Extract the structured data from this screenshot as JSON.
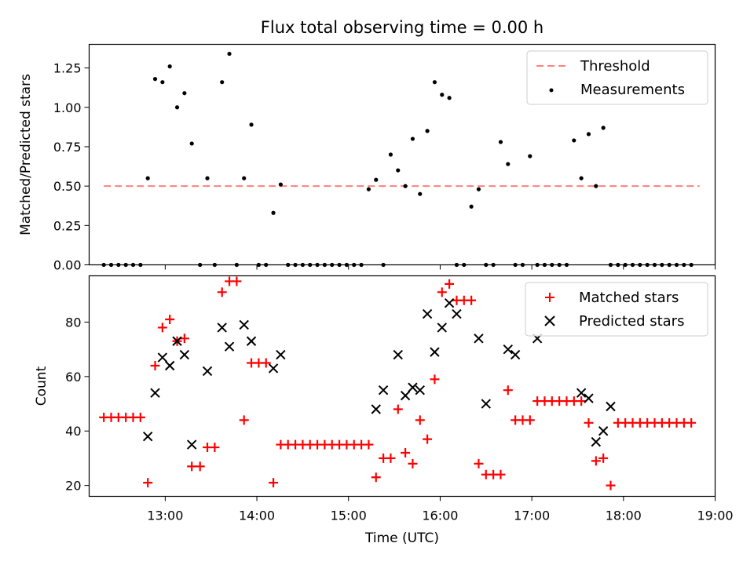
{
  "chart_data": [
    {
      "type": "scatter",
      "title": "Flux total observing time = 0.00 h",
      "xlabel": "",
      "ylabel": "Matched/Predicted stars",
      "xlim": [
        12.17,
        19.0
      ],
      "ylim": [
        0,
        1.4
      ],
      "yticks": [
        0,
        0.25,
        0.5,
        0.75,
        1.0,
        1.25
      ],
      "ytick_labels": [
        "0.00",
        "0.25",
        "0.50",
        "0.75",
        "1.00",
        "1.25"
      ],
      "xticks": [
        13,
        14,
        15,
        16,
        17,
        18,
        19
      ],
      "legend_position": "top-right",
      "grid": false,
      "threshold": {
        "name": "Threshold",
        "value": 0.5,
        "x_range": [
          12.33,
          18.83
        ],
        "color": "#ff8080"
      },
      "series": [
        {
          "name": "Measurements",
          "marker": "dot",
          "color": "#000000",
          "x": [
            12.33,
            12.41,
            12.49,
            12.57,
            12.65,
            12.73,
            12.81,
            12.89,
            12.97,
            13.05,
            13.13,
            13.21,
            13.29,
            13.38,
            13.46,
            13.54,
            13.62,
            13.7,
            13.78,
            13.86,
            13.94,
            14.02,
            14.1,
            14.18,
            14.26,
            14.34,
            14.42,
            14.5,
            14.58,
            14.66,
            14.74,
            14.82,
            14.9,
            14.98,
            15.06,
            15.14,
            15.22,
            15.3,
            15.38,
            15.46,
            15.54,
            15.62,
            15.7,
            15.78,
            15.86,
            15.94,
            16.02,
            16.1,
            16.18,
            16.26,
            16.34,
            16.42,
            16.5,
            16.58,
            16.66,
            16.74,
            16.82,
            16.9,
            16.98,
            17.06,
            17.14,
            17.22,
            17.3,
            17.38,
            17.46,
            17.54,
            17.62,
            17.7,
            17.78,
            17.86,
            17.94,
            18.02,
            18.1,
            18.18,
            18.26,
            18.34,
            18.42,
            18.5,
            18.58,
            18.66,
            18.74
          ],
          "y": [
            0,
            0,
            0,
            0,
            0,
            0,
            0.55,
            1.18,
            1.16,
            1.26,
            1.0,
            1.09,
            0.77,
            0,
            0.55,
            0,
            1.16,
            1.34,
            0,
            0.55,
            0.89,
            0,
            0,
            0.33,
            0.51,
            0,
            0,
            0,
            0,
            0,
            0,
            0,
            0,
            0,
            0,
            0,
            0.48,
            0.54,
            0,
            0.7,
            0.6,
            0.5,
            0.8,
            0.45,
            0.85,
            1.16,
            1.08,
            1.06,
            0,
            0,
            0.37,
            0.48,
            0,
            0,
            0.78,
            0.64,
            0,
            0,
            0.69,
            0,
            0,
            0,
            0,
            0,
            0.79,
            0.55,
            0.83,
            0.5,
            0.87,
            0,
            0,
            0,
            0,
            0,
            0,
            0,
            0,
            0,
            0,
            0,
            0
          ]
        }
      ]
    },
    {
      "type": "scatter",
      "title": "",
      "xlabel": "Time (UTC)",
      "ylabel": "Count",
      "xlim": [
        12.17,
        19.0
      ],
      "ylim": [
        16,
        97
      ],
      "yticks": [
        20,
        40,
        60,
        80
      ],
      "ytick_labels": [
        "20",
        "40",
        "60",
        "80"
      ],
      "xticks": [
        13,
        14,
        15,
        16,
        17,
        18,
        19
      ],
      "xtick_labels": [
        "13:00",
        "14:00",
        "15:00",
        "16:00",
        "17:00",
        "18:00",
        "19:00"
      ],
      "legend_position": "top-right",
      "grid": false,
      "series": [
        {
          "name": "Matched stars",
          "marker": "plus",
          "color": "#ff0000",
          "x": [
            12.33,
            12.41,
            12.49,
            12.57,
            12.65,
            12.73,
            12.81,
            12.89,
            12.97,
            13.05,
            13.13,
            13.21,
            13.29,
            13.38,
            13.46,
            13.54,
            13.62,
            13.7,
            13.78,
            13.86,
            13.94,
            14.02,
            14.1,
            14.18,
            14.26,
            14.34,
            14.42,
            14.5,
            14.58,
            14.66,
            14.74,
            14.82,
            14.9,
            14.98,
            15.06,
            15.14,
            15.22,
            15.3,
            15.38,
            15.46,
            15.54,
            15.62,
            15.7,
            15.78,
            15.86,
            15.94,
            16.02,
            16.1,
            16.18,
            16.26,
            16.34,
            16.42,
            16.5,
            16.58,
            16.66,
            16.74,
            16.82,
            16.9,
            16.98,
            17.06,
            17.14,
            17.22,
            17.3,
            17.38,
            17.46,
            17.54,
            17.62,
            17.7,
            17.78,
            17.86,
            17.94,
            18.02,
            18.1,
            18.18,
            18.26,
            18.34,
            18.42,
            18.5,
            18.58,
            18.66,
            18.74
          ],
          "y": [
            45,
            45,
            45,
            45,
            45,
            45,
            21,
            64,
            78,
            81,
            73,
            74,
            27,
            27,
            34,
            34,
            91,
            95,
            95,
            44,
            65,
            65,
            65,
            21,
            35,
            35,
            35,
            35,
            35,
            35,
            35,
            35,
            35,
            35,
            35,
            35,
            35,
            23,
            30,
            30,
            48,
            32,
            28,
            44,
            37,
            59,
            91,
            94,
            88,
            88,
            88,
            28,
            24,
            24,
            24,
            55,
            44,
            44,
            44,
            51,
            51,
            51,
            51,
            51,
            51,
            51,
            43,
            29,
            30,
            20,
            43,
            43,
            43,
            43,
            43,
            43,
            43,
            43,
            43,
            43,
            43
          ]
        },
        {
          "name": "Predicted stars",
          "marker": "x",
          "color": "#000000",
          "x": [
            12.81,
            12.89,
            12.97,
            13.05,
            13.13,
            13.21,
            13.29,
            13.46,
            13.62,
            13.7,
            13.86,
            13.94,
            14.18,
            14.26,
            15.3,
            15.38,
            15.54,
            15.62,
            15.7,
            15.78,
            15.86,
            15.94,
            16.02,
            16.1,
            16.18,
            16.42,
            16.5,
            16.74,
            16.82,
            17.06,
            17.54,
            17.62,
            17.7,
            17.78,
            17.86
          ],
          "y": [
            38,
            54,
            67,
            64,
            73,
            68,
            35,
            62,
            78,
            71,
            79,
            73,
            63,
            68,
            48,
            55,
            68,
            53,
            56,
            55,
            83,
            69,
            78,
            87,
            83,
            74,
            50,
            70,
            68,
            74,
            54,
            52,
            36,
            40,
            49
          ]
        }
      ]
    }
  ]
}
